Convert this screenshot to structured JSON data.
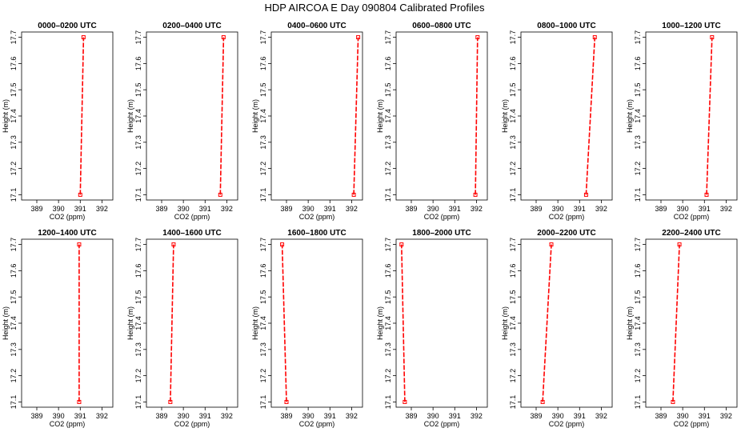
{
  "title": "HDP AIRCOA E  Day 090804  Calibrated Profiles",
  "xlabel": "CO2 (ppm)",
  "ylabel": "Height (m)",
  "series_color": "#ff0000",
  "chart_data": {
    "type": "line",
    "xlim": [
      388.3,
      392.5
    ],
    "ylim": [
      17.08,
      17.72
    ],
    "xticks": [
      389,
      390,
      391,
      392
    ],
    "yticks": [
      17.1,
      17.2,
      17.3,
      17.4,
      17.5,
      17.6,
      17.7
    ],
    "grid": false,
    "panels": [
      {
        "title": "0000–0200 UTC",
        "x": [
          391.0,
          391.15
        ],
        "y": [
          17.1,
          17.7
        ]
      },
      {
        "title": "0200–0400 UTC",
        "x": [
          391.7,
          391.85
        ],
        "y": [
          17.1,
          17.7
        ]
      },
      {
        "title": "0400–0600 UTC",
        "x": [
          392.1,
          392.3
        ],
        "y": [
          17.1,
          17.7
        ]
      },
      {
        "title": "0600–0800 UTC",
        "x": [
          391.95,
          392.05
        ],
        "y": [
          17.1,
          17.7
        ]
      },
      {
        "title": "0800–1000 UTC",
        "x": [
          391.3,
          391.7
        ],
        "y": [
          17.1,
          17.7
        ]
      },
      {
        "title": "1000–1200 UTC",
        "x": [
          391.1,
          391.35
        ],
        "y": [
          17.1,
          17.7
        ]
      },
      {
        "title": "1200–1400 UTC",
        "x": [
          390.95,
          390.95
        ],
        "y": [
          17.1,
          17.7
        ]
      },
      {
        "title": "1400–1600 UTC",
        "x": [
          389.4,
          389.55
        ],
        "y": [
          17.1,
          17.7
        ]
      },
      {
        "title": "1600–1800 UTC",
        "x": [
          389.0,
          388.8
        ],
        "y": [
          17.1,
          17.7
        ]
      },
      {
        "title": "1800–2000 UTC",
        "x": [
          388.7,
          388.55
        ],
        "y": [
          17.1,
          17.7
        ]
      },
      {
        "title": "2000–2200 UTC",
        "x": [
          389.3,
          389.7
        ],
        "y": [
          17.1,
          17.7
        ]
      },
      {
        "title": "2200–2400 UTC",
        "x": [
          389.55,
          389.85
        ],
        "y": [
          17.1,
          17.7
        ]
      }
    ]
  }
}
